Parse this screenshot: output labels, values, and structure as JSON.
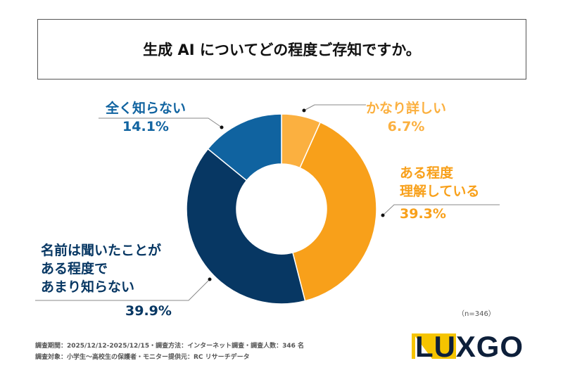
{
  "title": "生成 AI についてどの程度ご存知ですか。",
  "chart_data": {
    "type": "pie",
    "donut": true,
    "title": "生成 AI についてどの程度ご存知ですか。",
    "slices": [
      {
        "label": "かなり詳しい",
        "value": 6.7,
        "value_label": "6.7%",
        "color": "#fbb040"
      },
      {
        "label": "ある程度理解している",
        "value": 39.3,
        "value_label": "39.3%",
        "color": "#f8a01a"
      },
      {
        "label": "名前は聞いたことがある程度であまり知らない",
        "value": 39.9,
        "value_label": "39.9%",
        "color": "#073763"
      },
      {
        "label": "全く知らない",
        "value": 14.1,
        "value_label": "14.1%",
        "color": "#1063a0"
      }
    ],
    "sample_size": "（n=346）"
  },
  "labels": {
    "s0": [
      "かなり詳しい"
    ],
    "s1": [
      "ある程度",
      "理解している"
    ],
    "s2": [
      "名前は聞いたことが",
      "ある程度で",
      "あまり知らない"
    ],
    "s3": [
      "全く知らない"
    ]
  },
  "footer": {
    "line1": "調査期間：2025/12/12-2025/12/15・調査方法：インターネット調査・調査人数：346 名",
    "line2": "調査対象：小学生〜高校生の保護者・モニター提供元：RC リサーチデータ"
  },
  "logo": {
    "text": "LUXGO",
    "accent": "#f5c400",
    "color": "#0d1f3a"
  }
}
